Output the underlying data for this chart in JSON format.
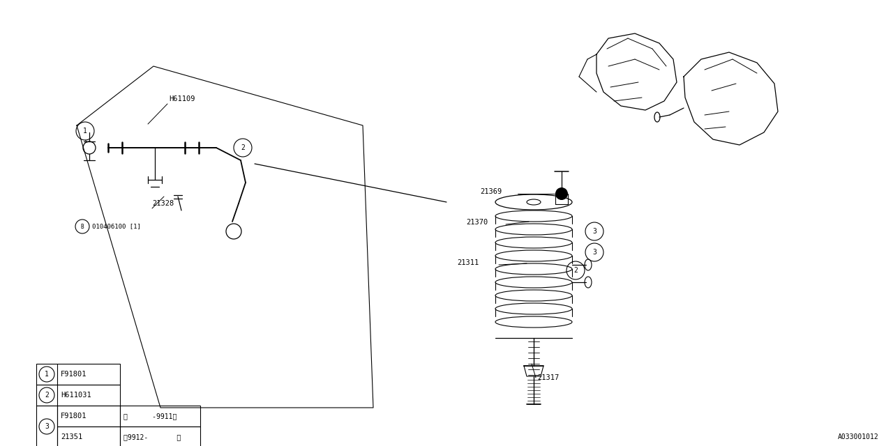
{
  "bg_color": "#ffffff",
  "line_color": "#000000",
  "fig_width": 12.8,
  "fig_height": 6.4,
  "dpi": 100,
  "watermark": "A033001012",
  "table_rows": [
    {
      "circle": "1",
      "col1": "F91801",
      "col2": "",
      "col3": ""
    },
    {
      "circle": "2",
      "col1": "H611031",
      "col2": "",
      "col3": ""
    },
    {
      "circle": "3",
      "col1": "F91801",
      "col2": "(      -9911)",
      "col3": ""
    },
    {
      "circle": "3",
      "col1": "21351",
      "col2": "(9912-       )",
      "col3": ""
    }
  ]
}
